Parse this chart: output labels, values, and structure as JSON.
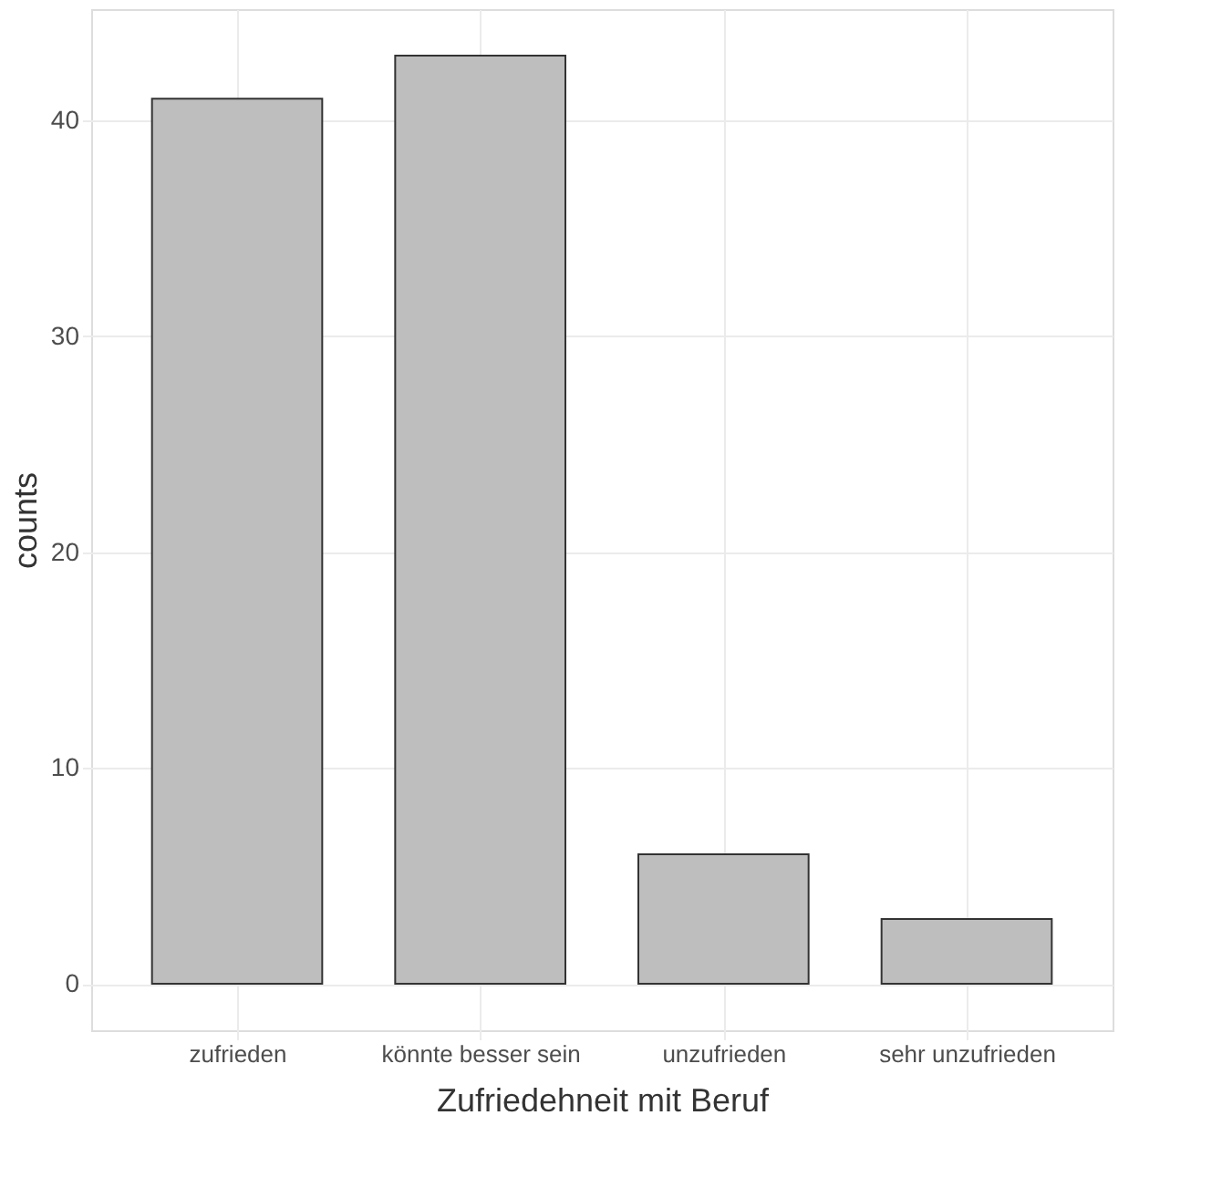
{
  "chart_data": {
    "type": "bar",
    "categories": [
      "zufrieden",
      "könnte besser sein",
      "unzufrieden",
      "sehr unzufrieden"
    ],
    "values": [
      41,
      43,
      6,
      3
    ],
    "color": "#bebebe",
    "xlabel": "Zufriedehneit mit Beruf",
    "ylabel": "counts",
    "ylim": [
      -2.15,
      45.15
    ],
    "yticks": [
      0,
      10,
      20,
      30,
      40
    ],
    "grid": true
  }
}
